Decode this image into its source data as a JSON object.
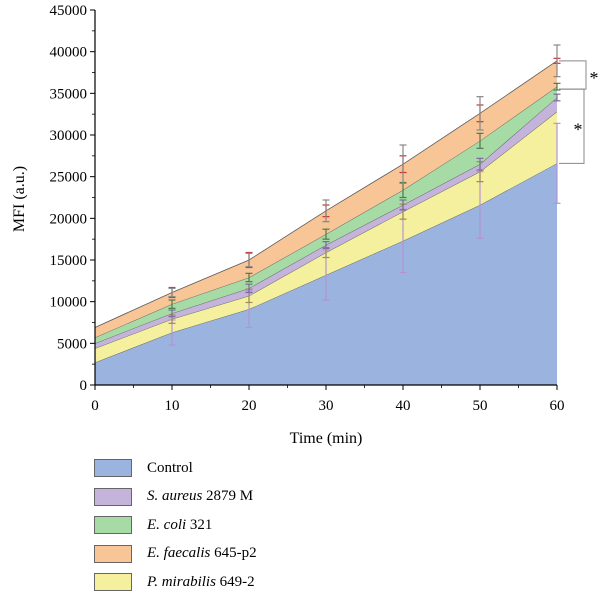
{
  "chart_data": {
    "type": "area",
    "stacked": true,
    "xlabel": "Time (min)",
    "ylabel": "MFI (a.u.)",
    "x": [
      0,
      10,
      20,
      30,
      40,
      50,
      60
    ],
    "xlim": [
      0,
      60
    ],
    "xticks": [
      0,
      10,
      20,
      30,
      40,
      50,
      60
    ],
    "ylim": [
      0,
      45000
    ],
    "yticks": [
      0,
      5000,
      10000,
      15000,
      20000,
      25000,
      30000,
      35000,
      40000,
      45000
    ],
    "grid": false,
    "legend_position": "bottom",
    "series": [
      {
        "name": "Control",
        "legend_italic": "",
        "legend_rest": "Control",
        "color": "#9bb3df",
        "values": [
          2700,
          6300,
          9100,
          13200,
          17300,
          21600,
          26600
        ]
      },
      {
        "name": "P. mirabilis 649-2",
        "legend_italic": "P. mirabilis",
        "legend_rest": " 649-2",
        "color": "#f5f09e",
        "values": [
          1700,
          1600,
          1600,
          2700,
          3500,
          4000,
          6200
        ]
      },
      {
        "name": "S. aureus 2879 M",
        "legend_italic": "S. aureus",
        "legend_rest": " 2879 M",
        "color": "#c4b4db",
        "values": [
          600,
          700,
          900,
          900,
          800,
          900,
          1700
        ]
      },
      {
        "name": "E. coli 321",
        "legend_italic": "E. coli",
        "legend_rest": " 321",
        "color": "#a6dba6",
        "values": [
          700,
          1100,
          1300,
          1300,
          1800,
          2800,
          1300
        ]
      },
      {
        "name": "E. faecalis 645-p2",
        "legend_italic": "E. faecalis",
        "legend_rest": " 645-p2",
        "color": "#f8c596",
        "values": [
          1200,
          1400,
          2100,
          2800,
          3100,
          3300,
          3100
        ]
      }
    ],
    "legend_order": [
      0,
      2,
      3,
      4,
      1
    ],
    "error_bars": [
      {
        "series": 0,
        "color": "#b394d2",
        "values": [
          0,
          1500,
          2200,
          3000,
          3800,
          4000,
          4800
        ]
      },
      {
        "series": 1,
        "color": "#a08a55",
        "values": [
          0,
          500,
          800,
          600,
          900,
          1200,
          0
        ]
      },
      {
        "series": 2,
        "color": "#7a6aa0",
        "values": [
          0,
          400,
          500,
          400,
          600,
          700,
          400
        ]
      },
      {
        "series": 3,
        "color": "#4e7a4e",
        "values": [
          0,
          500,
          500,
          600,
          900,
          900,
          400
        ]
      },
      {
        "series": 4,
        "color": "#cc3333",
        "values": [
          0,
          600,
          900,
          700,
          1000,
          1000,
          300
        ]
      },
      {
        "series": 4,
        "color": "#888888",
        "values": [
          0,
          500,
          800,
          1300,
          2300,
          2000,
          1900
        ]
      }
    ],
    "significance": [
      {
        "label": "*",
        "from": 38900,
        "to": 35500
      },
      {
        "label": "*",
        "from": 35500,
        "to": 26600
      }
    ]
  }
}
